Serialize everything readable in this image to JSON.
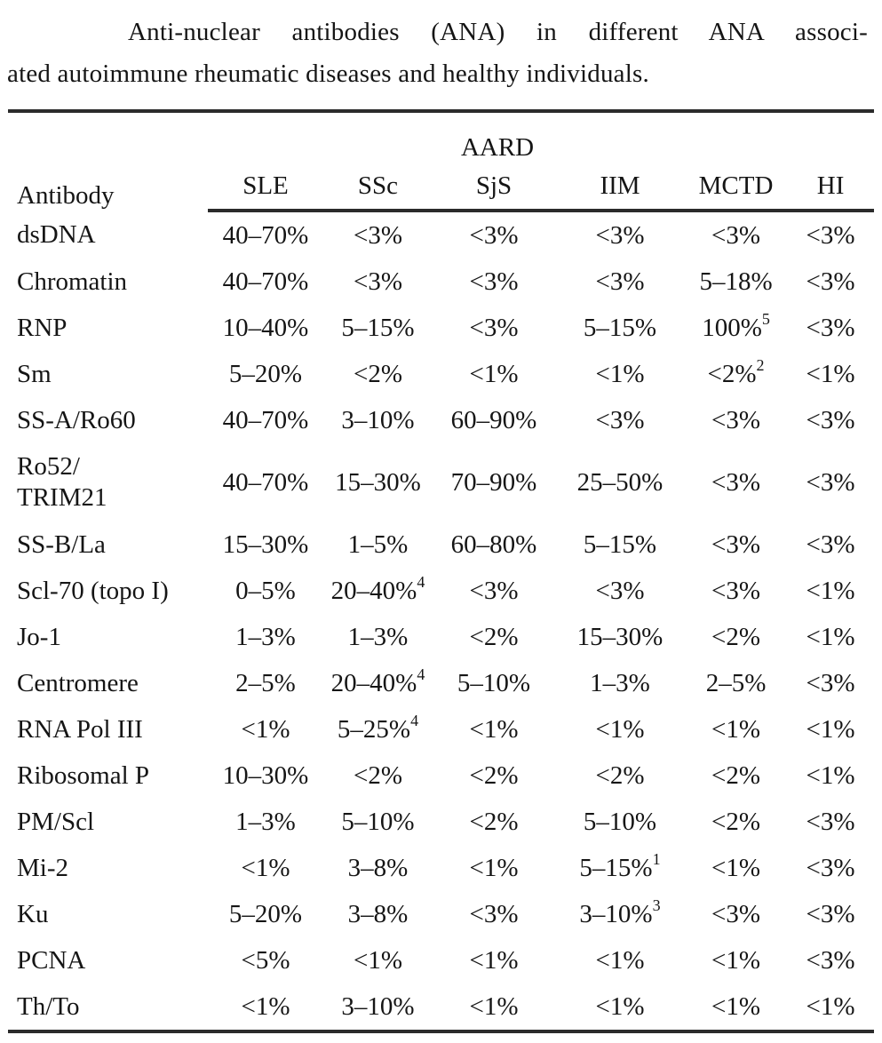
{
  "caption": {
    "lines": [
      "Anti-nuclear antibodies (ANA) in different ANA associ-",
      "ated autoimmune rheumatic diseases and healthy individuals."
    ]
  },
  "table": {
    "row_header": "Antibody",
    "group_header": "AARD",
    "columns": [
      "SLE",
      "SSc",
      "SjS",
      "IIM",
      "MCTD",
      "HI"
    ],
    "rows": [
      {
        "antibody": "dsDNA",
        "values": [
          {
            "v": "40–70%"
          },
          {
            "v": "<3%"
          },
          {
            "v": "<3%"
          },
          {
            "v": "<3%"
          },
          {
            "v": "<3%"
          },
          {
            "v": "<3%"
          }
        ]
      },
      {
        "antibody": "Chromatin",
        "values": [
          {
            "v": "40–70%"
          },
          {
            "v": "<3%"
          },
          {
            "v": "<3%"
          },
          {
            "v": "<3%"
          },
          {
            "v": "5–18%"
          },
          {
            "v": "<3%"
          }
        ]
      },
      {
        "antibody": "RNP",
        "values": [
          {
            "v": "10–40%"
          },
          {
            "v": "5–15%"
          },
          {
            "v": "<3%"
          },
          {
            "v": "5–15%"
          },
          {
            "v": "100%",
            "sup": "5"
          },
          {
            "v": "<3%"
          }
        ]
      },
      {
        "antibody": "Sm",
        "values": [
          {
            "v": "5–20%"
          },
          {
            "v": "<2%"
          },
          {
            "v": "<1%"
          },
          {
            "v": "<1%"
          },
          {
            "v": "<2%",
            "sup": "2"
          },
          {
            "v": "<1%"
          }
        ]
      },
      {
        "antibody": "SS-A/Ro60",
        "values": [
          {
            "v": "40–70%"
          },
          {
            "v": "3–10%"
          },
          {
            "v": "60–90%"
          },
          {
            "v": "<3%"
          },
          {
            "v": "<3%"
          },
          {
            "v": "<3%"
          }
        ]
      },
      {
        "antibody": "Ro52/\nTRIM21",
        "tall": true,
        "values": [
          {
            "v": "40–70%"
          },
          {
            "v": "15–30%"
          },
          {
            "v": "70–90%"
          },
          {
            "v": "25–50%"
          },
          {
            "v": "<3%"
          },
          {
            "v": "<3%"
          }
        ]
      },
      {
        "antibody": "SS-B/La",
        "values": [
          {
            "v": "15–30%"
          },
          {
            "v": "1–5%"
          },
          {
            "v": "60–80%"
          },
          {
            "v": "5–15%"
          },
          {
            "v": "<3%"
          },
          {
            "v": "<3%"
          }
        ]
      },
      {
        "antibody": "Scl-70 (topo I)",
        "values": [
          {
            "v": "0–5%"
          },
          {
            "v": "20–40%",
            "sup": "4"
          },
          {
            "v": "<3%"
          },
          {
            "v": "<3%"
          },
          {
            "v": "<3%"
          },
          {
            "v": "<1%"
          }
        ]
      },
      {
        "antibody": "Jo-1",
        "values": [
          {
            "v": "1–3%"
          },
          {
            "v": "1–3%"
          },
          {
            "v": "<2%"
          },
          {
            "v": "15–30%"
          },
          {
            "v": "<2%"
          },
          {
            "v": "<1%"
          }
        ]
      },
      {
        "antibody": "Centromere",
        "values": [
          {
            "v": "2–5%"
          },
          {
            "v": "20–40%",
            "sup": "4"
          },
          {
            "v": "5–10%"
          },
          {
            "v": "1–3%"
          },
          {
            "v": "2–5%"
          },
          {
            "v": "<3%"
          }
        ]
      },
      {
        "antibody": "RNA Pol III",
        "values": [
          {
            "v": "<1%"
          },
          {
            "v": "5–25%",
            "sup": "4"
          },
          {
            "v": "<1%"
          },
          {
            "v": "<1%"
          },
          {
            "v": "<1%"
          },
          {
            "v": "<1%"
          }
        ]
      },
      {
        "antibody": "Ribosomal P",
        "values": [
          {
            "v": "10–30%"
          },
          {
            "v": "<2%"
          },
          {
            "v": "<2%"
          },
          {
            "v": "<2%"
          },
          {
            "v": "<2%"
          },
          {
            "v": "<1%"
          }
        ]
      },
      {
        "antibody": "PM/Scl",
        "values": [
          {
            "v": "1–3%"
          },
          {
            "v": "5–10%"
          },
          {
            "v": "<2%"
          },
          {
            "v": "5–10%"
          },
          {
            "v": "<2%"
          },
          {
            "v": "<3%"
          }
        ]
      },
      {
        "antibody": "Mi-2",
        "values": [
          {
            "v": "<1%"
          },
          {
            "v": "3–8%"
          },
          {
            "v": "<1%"
          },
          {
            "v": "5–15%",
            "sup": "1"
          },
          {
            "v": "<1%"
          },
          {
            "v": "<3%"
          }
        ]
      },
      {
        "antibody": "Ku",
        "values": [
          {
            "v": "5–20%"
          },
          {
            "v": "3–8%"
          },
          {
            "v": "<3%"
          },
          {
            "v": "3–10%",
            "sup": "3"
          },
          {
            "v": "<3%"
          },
          {
            "v": "<3%"
          }
        ]
      },
      {
        "antibody": "PCNA",
        "values": [
          {
            "v": "<5%"
          },
          {
            "v": "<1%"
          },
          {
            "v": "<1%"
          },
          {
            "v": "<1%"
          },
          {
            "v": "<1%"
          },
          {
            "v": "<3%"
          }
        ]
      },
      {
        "antibody": "Th/To",
        "values": [
          {
            "v": "<1%"
          },
          {
            "v": "3–10%"
          },
          {
            "v": "<1%"
          },
          {
            "v": "<1%"
          },
          {
            "v": "<1%"
          },
          {
            "v": "<1%"
          }
        ]
      }
    ]
  }
}
